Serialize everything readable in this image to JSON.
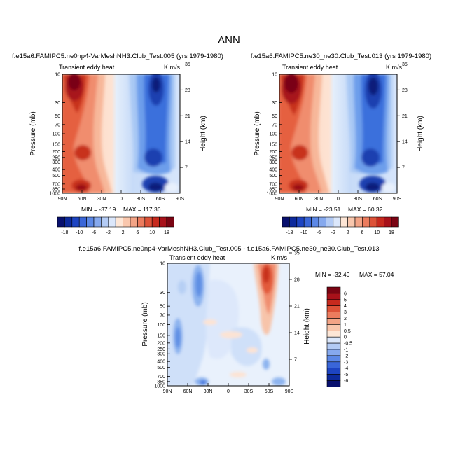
{
  "figure": {
    "title": "ANN"
  },
  "chart_data": [
    {
      "type": "heatmap",
      "title": "f.e15a6.FAMIPC5.ne0np4-VarMeshNH3.Club_Test.005 (yrs 1979-1980)",
      "subtitle_left": "Transient eddy heat",
      "subtitle_right": "K m/s",
      "xlabel": "",
      "ylabel": "Pressure (mb)",
      "ylabel_right": "Height (km)",
      "x_ticks": [
        "90N",
        "60N",
        "30N",
        "0",
        "30S",
        "60S",
        "90S"
      ],
      "y_ticks": [
        "10",
        "30",
        "50",
        "70",
        "100",
        "150",
        "200",
        "250",
        "300",
        "400",
        "500",
        "700",
        "850",
        "1000"
      ],
      "y_ticks_right": [
        "35",
        "28",
        "21",
        "14",
        "7"
      ],
      "min_label": "MIN = -37.19",
      "max_label": "MAX = 117.36",
      "colorbar_labels": [
        "-18",
        "-10",
        "-6",
        "-2",
        "2",
        "6",
        "10",
        "18"
      ]
    },
    {
      "type": "heatmap",
      "title": "f.e15a6.FAMIPC5.ne30_ne30.Club_Test.013 (yrs 1979-1980)",
      "subtitle_left": "Transient eddy heat",
      "subtitle_right": "K m/s",
      "xlabel": "",
      "ylabel": "Pressure (mb)",
      "ylabel_right": "Height (km)",
      "x_ticks": [
        "90N",
        "60N",
        "30N",
        "0",
        "30S",
        "60S",
        "90S"
      ],
      "y_ticks": [
        "10",
        "30",
        "50",
        "70",
        "100",
        "150",
        "200",
        "250",
        "300",
        "400",
        "500",
        "700",
        "850",
        "1000"
      ],
      "y_ticks_right": [
        "35",
        "28",
        "21",
        "14",
        "7"
      ],
      "min_label": "MIN = -23.51",
      "max_label": "MAX = 60.32",
      "colorbar_labels": [
        "-18",
        "-10",
        "-6",
        "-2",
        "2",
        "6",
        "10",
        "18"
      ]
    },
    {
      "type": "heatmap",
      "title": "f.e15a6.FAMIPC5.ne0np4-VarMeshNH3.Club_Test.005 - f.e15a6.FAMIPC5.ne30_ne30.Club_Test.013",
      "subtitle_left": "Transient eddy heat",
      "subtitle_right": "K m/s",
      "xlabel": "",
      "ylabel": "Pressure (mb)",
      "ylabel_right": "Height (km)",
      "x_ticks": [
        "90N",
        "60N",
        "30N",
        "0",
        "30S",
        "60S",
        "90S"
      ],
      "y_ticks": [
        "10",
        "30",
        "50",
        "70",
        "100",
        "150",
        "200",
        "250",
        "300",
        "400",
        "500",
        "700",
        "850",
        "1000"
      ],
      "y_ticks_right": [
        "35",
        "28",
        "21",
        "14",
        "7"
      ],
      "min_label": "MIN = -32.49",
      "max_label": "MAX =  57.04",
      "colorbar_labels": [
        "6",
        "5",
        "4",
        "3",
        "2",
        "1",
        "0.5",
        "0",
        "-0.5",
        "-1",
        "-2",
        "-3",
        "-4",
        "-5",
        "-6"
      ]
    }
  ]
}
